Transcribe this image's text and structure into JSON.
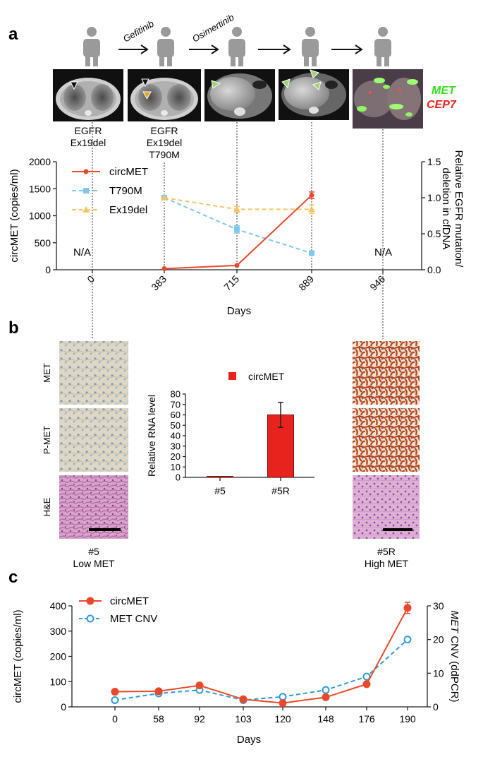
{
  "panel_labels": {
    "a": "a",
    "b": "b",
    "c": "c"
  },
  "timeline": {
    "drugs": [
      "Gefitinib",
      "Osimertinib"
    ],
    "scan_labels": [
      {
        "line1": "EGFR",
        "line2": "Ex19del",
        "line3": ""
      },
      {
        "line1": "EGFR",
        "line2": "Ex19del",
        "line3": "T790M"
      }
    ],
    "fish_labels": {
      "met": "MET",
      "cep7": "CEP7"
    }
  },
  "panel_b": {
    "rows": [
      "MET",
      "P-MET",
      "H&E"
    ],
    "left_caption": {
      "line1": "#5",
      "line2": "Low MET"
    },
    "right_caption": {
      "line1": "#5R",
      "line2": "High MET"
    }
  },
  "chart_data": [
    {
      "id": "a",
      "type": "line",
      "x": [
        0,
        383,
        715,
        889,
        946
      ],
      "xticklabels": [
        "0",
        "383",
        "715",
        "889",
        "946"
      ],
      "xlabel": "Days",
      "ylabel": "circMET (copies/ml)",
      "ylim": [
        0,
        2000
      ],
      "yticks": [
        "0",
        "500",
        "1000",
        "1500",
        "2000"
      ],
      "y2label_line1": "Relative EGFR mutation/",
      "y2label_line2": "deletion in cfDNA",
      "y2lim": [
        0,
        1.5
      ],
      "y2ticks": [
        "0.0",
        "0.5",
        "1.0",
        "1.5"
      ],
      "na_labels": [
        "N/A",
        "N/A"
      ],
      "series": [
        {
          "name": "circMET",
          "axis": "left",
          "color": "#e8492a",
          "style": "solid",
          "marker": "circle",
          "x": [
            383,
            715,
            889
          ],
          "values": [
            20,
            80,
            1380
          ],
          "errors": [
            0,
            0,
            60
          ]
        },
        {
          "name": "T790M",
          "axis": "right",
          "color": "#7ec8ee",
          "style": "dashed",
          "marker": "square",
          "x": [
            383,
            715,
            889
          ],
          "values": [
            1.0,
            0.56,
            0.23
          ],
          "errors": [
            0,
            0.05,
            0.03
          ]
        },
        {
          "name": "Ex19del",
          "axis": "right",
          "color": "#f5c66a",
          "style": "dashed",
          "marker": "triangle",
          "x": [
            383,
            715,
            889
          ],
          "values": [
            1.0,
            0.84,
            0.84
          ],
          "errors": [
            0,
            0.04,
            0.06
          ]
        }
      ]
    },
    {
      "id": "b",
      "type": "bar",
      "categories": [
        "#5",
        "#5R"
      ],
      "values": [
        1,
        60
      ],
      "errors": [
        0,
        12
      ],
      "ylabel": "Relative RNA level",
      "ylim": [
        0,
        80
      ],
      "yticks": [
        "0",
        "10",
        "20",
        "30",
        "40",
        "50",
        "60",
        "70",
        "80"
      ],
      "legend": "circMET",
      "color": "#e8231e"
    },
    {
      "id": "c",
      "type": "line",
      "categories": [
        "0",
        "58",
        "92",
        "103",
        "120",
        "148",
        "176",
        "190"
      ],
      "xlabel": "Days",
      "ylabel": "circMET (copies/ml)",
      "ylim": [
        0,
        400
      ],
      "yticks": [
        "0",
        "100",
        "200",
        "300",
        "400"
      ],
      "y2label_italic": "MET",
      "y2label_rest": " CNV (ddPCR)",
      "y2lim": [
        0,
        30
      ],
      "y2ticks": [
        "0",
        "10",
        "20",
        "30"
      ],
      "series": [
        {
          "name": "circMET",
          "axis": "left",
          "color": "#e8492a",
          "style": "solid",
          "marker": "filled-circle",
          "values": [
            60,
            62,
            85,
            30,
            15,
            38,
            90,
            392
          ],
          "errors": [
            0,
            0,
            0,
            0,
            0,
            0,
            0,
            22
          ]
        },
        {
          "name": "MET CNV",
          "axis": "right",
          "color": "#2e9ad8",
          "style": "dashed",
          "marker": "open-circle",
          "values": [
            2,
            4,
            5,
            2,
            3,
            5,
            9,
            20
          ],
          "errors": [
            0,
            0,
            0,
            0,
            0,
            0,
            0.7,
            0
          ]
        }
      ]
    }
  ]
}
